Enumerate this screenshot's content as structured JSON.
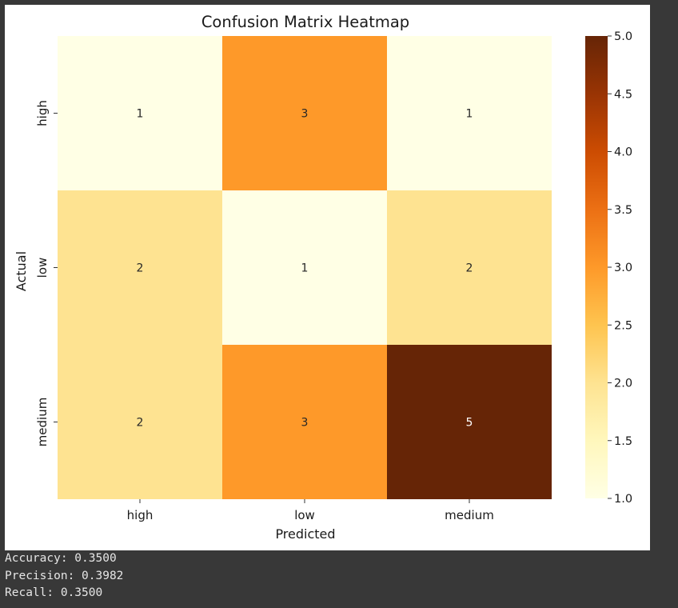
{
  "chart_data": {
    "type": "heatmap",
    "title": "Confusion Matrix Heatmap",
    "xlabel": "Predicted",
    "ylabel": "Actual",
    "x_categories": [
      "high",
      "low",
      "medium"
    ],
    "y_categories": [
      "high",
      "low",
      "medium"
    ],
    "values": [
      [
        1,
        3,
        1
      ],
      [
        2,
        1,
        2
      ],
      [
        2,
        3,
        5
      ]
    ],
    "colormap": "YlOrBr",
    "colorbar": {
      "range": [
        1.0,
        5.0
      ],
      "ticks": [
        "1.0",
        "1.5",
        "2.0",
        "2.5",
        "3.0",
        "3.5",
        "4.0",
        "4.5",
        "5.0"
      ]
    },
    "colors": {
      "value_1": "#ffffe5",
      "value_2": "#fee391",
      "value_3": "#fe9929",
      "value_5": "#662506"
    }
  },
  "output": {
    "lines": [
      "Accuracy: 0.3500",
      "Precision: 0.3982",
      "Recall: 0.3500"
    ]
  }
}
